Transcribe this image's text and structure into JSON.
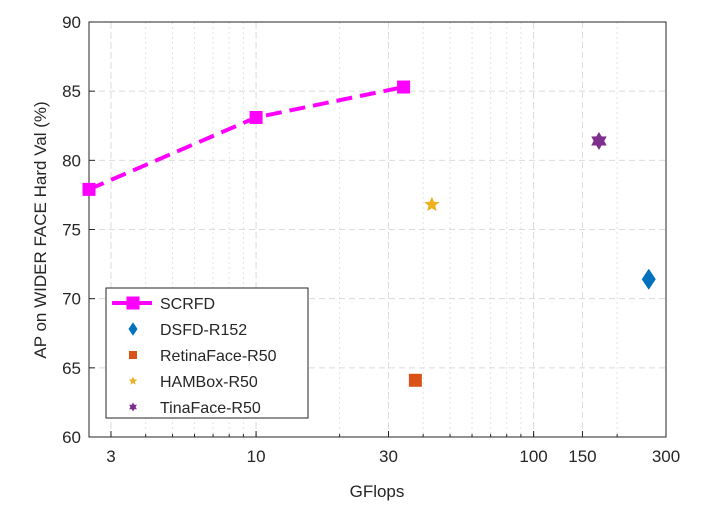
{
  "chart_data": {
    "type": "scatter",
    "title": "",
    "xlabel": "GFlops",
    "ylabel": "AP on WIDER FACE Hard Val (%)",
    "xscale": "log",
    "xlim": [
      2.5,
      300
    ],
    "ylim": [
      60,
      90
    ],
    "xticks": [
      3,
      10,
      30,
      100,
      150,
      300
    ],
    "xtick_labels": [
      "3",
      "10",
      "30",
      "100",
      "150",
      "300"
    ],
    "yticks": [
      60,
      65,
      70,
      75,
      80,
      85,
      90
    ],
    "ytick_labels": [
      "60",
      "65",
      "70",
      "75",
      "80",
      "85",
      "90"
    ],
    "grid": true,
    "legend_position": "bottom-left",
    "series": [
      {
        "name": "SCRFD",
        "marker": "square",
        "line": "dashed",
        "color": "#FF00FF",
        "x": [
          2.5,
          10,
          34
        ],
        "y": [
          77.9,
          83.1,
          85.3
        ]
      },
      {
        "name": "DSFD-R152",
        "marker": "diamond",
        "color": "#0072BD",
        "x": [
          260
        ],
        "y": [
          71.4
        ]
      },
      {
        "name": "RetinaFace-R50",
        "marker": "square",
        "color": "#D95319",
        "x": [
          37.5
        ],
        "y": [
          64.1
        ]
      },
      {
        "name": "HAMBox-R50",
        "marker": "star",
        "color": "#EDB120",
        "x": [
          43
        ],
        "y": [
          76.8
        ]
      },
      {
        "name": "TinaFace-R50",
        "marker": "hexagram",
        "color": "#7E2F8E",
        "x": [
          172
        ],
        "y": [
          81.4
        ]
      }
    ]
  }
}
